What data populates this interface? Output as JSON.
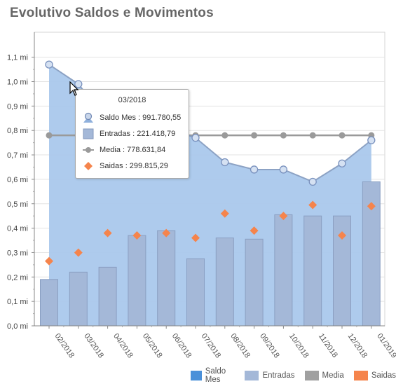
{
  "title": "Evolutivo Saldos e Movimentos",
  "colors": {
    "saldo_area": "#aac8ec",
    "saldo_line": "#8ca2c4",
    "entradas_bar": "#a4b8d8",
    "media_line": "#9a9a9a",
    "saidas": "#f5844c",
    "legend_saldo": "#4a90d9",
    "legend_entradas": "#a4b8d8",
    "legend_media": "#a0a0a0",
    "legend_saidas": "#f5844c"
  },
  "legend": [
    {
      "label": "Saldo Mes",
      "icon": "square"
    },
    {
      "label": "Entradas",
      "icon": "square"
    },
    {
      "label": "Media",
      "icon": "square"
    },
    {
      "label": "Saidas",
      "icon": "square"
    }
  ],
  "tooltip": {
    "header": "03/2018",
    "rows": [
      {
        "text": "Saldo Mes : 991.780,55",
        "icon": "area-marker-icon"
      },
      {
        "text": "Entradas : 221.418,79",
        "icon": "bar-swatch-icon"
      },
      {
        "text": "Media : 778.631,84",
        "icon": "line-dot-icon"
      },
      {
        "text": "Saidas : 299.815,29",
        "icon": "diamond-icon"
      }
    ]
  },
  "chart_data": {
    "type": "bar",
    "title": "Evolutivo Saldos e Movimentos",
    "categories": [
      "02/2018",
      "03/2018",
      "04/2018",
      "05/2018",
      "06/2018",
      "07/2018",
      "08/2018",
      "09/2018",
      "10/2018",
      "11/2018",
      "12/2018",
      "01/2019"
    ],
    "yticks": [
      "0,0 mi",
      "0,1 mi",
      "0,2 mi",
      "0,3 mi",
      "0,4 mi",
      "0,5 mi",
      "0,6 mi",
      "0,7 mi",
      "0,8 mi",
      "0,9 mi",
      "1,0 mi",
      "1,1 mi"
    ],
    "ylim": [
      0,
      1.1
    ],
    "grid": true,
    "legend_position": "bottom-right",
    "series": [
      {
        "name": "Saldo Mes",
        "type": "area",
        "values": [
          1.07,
          0.99,
          0.84,
          0.82,
          0.81,
          0.77,
          0.67,
          0.64,
          0.64,
          0.59,
          0.665,
          0.76
        ]
      },
      {
        "name": "Entradas",
        "type": "bar",
        "values": [
          0.19,
          0.22,
          0.24,
          0.37,
          0.39,
          0.275,
          0.36,
          0.355,
          0.455,
          0.45,
          0.45,
          0.59
        ]
      },
      {
        "name": "Media",
        "type": "line",
        "values": [
          0.78,
          0.78,
          0.78,
          0.78,
          0.78,
          0.78,
          0.78,
          0.78,
          0.78,
          0.78,
          0.78,
          0.78
        ]
      },
      {
        "name": "Saidas",
        "type": "scatter",
        "values": [
          0.265,
          0.3,
          0.38,
          0.37,
          0.38,
          0.36,
          0.46,
          0.39,
          0.45,
          0.495,
          0.37,
          0.49
        ]
      }
    ]
  }
}
